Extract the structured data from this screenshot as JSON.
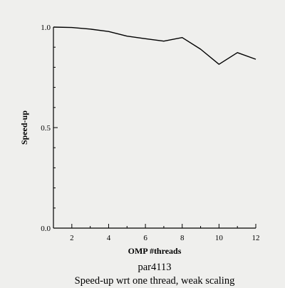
{
  "chart_data": {
    "type": "line",
    "title": "par4113",
    "subtitle": "Speed-up wrt one thread, weak scaling",
    "xlabel": "OMP #threads",
    "ylabel": "Speed-up",
    "xlim": [
      1,
      12
    ],
    "ylim": [
      0.0,
      1.0
    ],
    "x_ticks": [
      2,
      4,
      6,
      8,
      10,
      12
    ],
    "y_ticks": [
      0.0,
      0.5,
      1.0
    ],
    "x_tick_labels": [
      "2",
      "4",
      "6",
      "8",
      "10",
      "12"
    ],
    "y_tick_labels": [
      "0.0",
      "0.5",
      "1.0"
    ],
    "y_minor_step": 0.1,
    "grid": false,
    "series": [
      {
        "x": [
          1,
          2,
          3,
          4,
          5,
          6,
          7,
          8,
          9,
          10,
          11,
          12
        ],
        "values": [
          1.0,
          0.998,
          0.99,
          0.978,
          0.955,
          0.942,
          0.93,
          0.948,
          0.89,
          0.815,
          0.873,
          0.84
        ],
        "color": "#000000"
      }
    ]
  }
}
